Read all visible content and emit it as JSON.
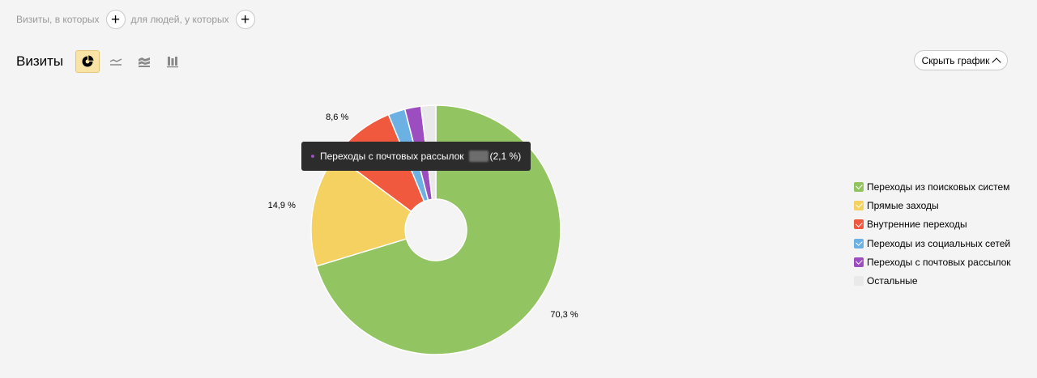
{
  "filters": {
    "visits_label": "Визиты, в которых",
    "people_label": "для людей, у которых",
    "add_symbol": "+"
  },
  "header": {
    "title": "Визиты",
    "view_icons": [
      "pie-chart-icon",
      "line-chart-icon",
      "area-chart-icon",
      "bar-chart-icon"
    ],
    "active_view": "pie-chart-icon",
    "hide_button_label": "Скрыть график"
  },
  "colors": {
    "active_view_bg": "#fae4a5",
    "tooltip_bg": "#2c2c2c"
  },
  "tooltip": {
    "series_name": "Переходы с почтовых рассылок",
    "value_text": "(2,1 %)",
    "color": "#9c4dbf"
  },
  "chart_data": {
    "type": "pie",
    "donut": true,
    "categories": [
      "Переходы из поисковых систем",
      "Прямые заходы",
      "Внутренние переходы",
      "Переходы из социальных сетей",
      "Переходы с почтовых рассылок",
      "Остальные"
    ],
    "values": [
      70.3,
      14.9,
      8.6,
      2.2,
      2.1,
      1.9
    ],
    "colors": [
      "#93c462",
      "#f5d162",
      "#f1593e",
      "#6cb1e3",
      "#9c4dbf",
      "#e9e9e9"
    ],
    "checked": [
      true,
      true,
      true,
      true,
      true,
      false
    ],
    "labels": [
      {
        "index": 0,
        "text": "70,3 %"
      },
      {
        "index": 1,
        "text": "14,9 %"
      },
      {
        "index": 2,
        "text": "8,6 %"
      }
    ],
    "legend_position": "right"
  }
}
